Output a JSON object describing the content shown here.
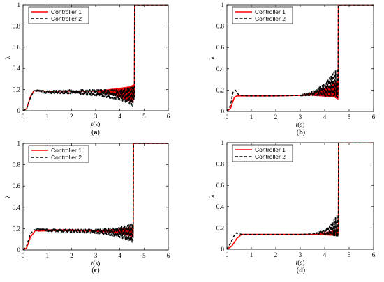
{
  "chart_data": [
    {
      "panel_label": "(a)",
      "type": "line",
      "xlabel_parts": [
        "t",
        "(s)"
      ],
      "ylabel": "λ",
      "xlim": [
        0,
        6
      ],
      "ylim": [
        0,
        1
      ],
      "xticks": [
        0,
        1,
        2,
        3,
        4,
        5,
        6
      ],
      "yticks": [
        0,
        0.2,
        0.4,
        0.6,
        0.8,
        1
      ],
      "legend_position": "top-left",
      "series": [
        {
          "name": "Controller 1",
          "color": "#ff0000",
          "style": "solid",
          "base": [
            [
              0,
              0
            ],
            [
              0.15,
              0.02
            ],
            [
              0.3,
              0.13
            ],
            [
              0.45,
              0.19
            ],
            [
              1,
              0.185
            ],
            [
              2,
              0.185
            ],
            [
              3,
              0.185
            ],
            [
              3.5,
              0.18
            ],
            [
              4,
              0.17
            ],
            [
              4.4,
              0.16
            ],
            [
              4.6,
              0.16
            ],
            [
              4.61,
              1
            ]
          ],
          "oscillation": [
            [
              3.0,
              0.0
            ],
            [
              3.5,
              0.02
            ],
            [
              4.0,
              0.045
            ],
            [
              4.4,
              0.07
            ],
            [
              4.58,
              0.09
            ]
          ],
          "osc_period": 0.05
        },
        {
          "name": "Controller 2",
          "color": "#000000",
          "style": "dashed",
          "base": [
            [
              0,
              0
            ],
            [
              0.15,
              0.02
            ],
            [
              0.3,
              0.12
            ],
            [
              0.45,
              0.19
            ],
            [
              1,
              0.175
            ],
            [
              2,
              0.18
            ],
            [
              3,
              0.17
            ],
            [
              3.5,
              0.16
            ],
            [
              4,
              0.15
            ],
            [
              4.4,
              0.14
            ],
            [
              4.6,
              0.13
            ],
            [
              4.61,
              1
            ]
          ],
          "oscillation": [
            [
              0.5,
              0.01
            ],
            [
              2.0,
              0.02
            ],
            [
              3.0,
              0.03
            ],
            [
              3.5,
              0.04
            ],
            [
              4.0,
              0.05
            ],
            [
              4.4,
              0.08
            ],
            [
              4.58,
              0.1
            ]
          ],
          "osc_period": 0.06
        }
      ]
    },
    {
      "panel_label": "(b)",
      "type": "line",
      "xlabel_parts": [
        "t",
        "(s)"
      ],
      "ylabel": "λ",
      "xlim": [
        0,
        6
      ],
      "ylim": [
        0,
        1
      ],
      "xticks": [
        0,
        1,
        2,
        3,
        4,
        5,
        6
      ],
      "yticks": [
        0,
        0.2,
        0.4,
        0.6,
        0.8,
        1
      ],
      "legend_position": "top-left",
      "series": [
        {
          "name": "Controller 1",
          "color": "#ff0000",
          "style": "solid",
          "base": [
            [
              0,
              0
            ],
            [
              0.15,
              0.03
            ],
            [
              0.3,
              0.13
            ],
            [
              0.4,
              0.145
            ],
            [
              1,
              0.145
            ],
            [
              2,
              0.145
            ],
            [
              3,
              0.15
            ],
            [
              3.5,
              0.16
            ],
            [
              4,
              0.18
            ],
            [
              4.4,
              0.2
            ],
            [
              4.55,
              0.2
            ],
            [
              4.56,
              1
            ]
          ],
          "oscillation": [
            [
              3.0,
              0.0
            ],
            [
              3.5,
              0.01
            ],
            [
              4.0,
              0.04
            ],
            [
              4.4,
              0.07
            ],
            [
              4.55,
              0.09
            ]
          ],
          "osc_period": 0.05
        },
        {
          "name": "Controller 2",
          "color": "#000000",
          "style": "dashed",
          "base": [
            [
              0,
              0
            ],
            [
              0.15,
              0.06
            ],
            [
              0.25,
              0.18
            ],
            [
              0.35,
              0.2
            ],
            [
              0.5,
              0.15
            ],
            [
              1,
              0.145
            ],
            [
              2,
              0.145
            ],
            [
              3,
              0.15
            ],
            [
              3.5,
              0.17
            ],
            [
              4,
              0.2
            ],
            [
              4.4,
              0.26
            ],
            [
              4.55,
              0.27
            ],
            [
              4.56,
              1
            ]
          ],
          "oscillation": [
            [
              3.0,
              0.005
            ],
            [
              3.5,
              0.02
            ],
            [
              4.0,
              0.06
            ],
            [
              4.4,
              0.12
            ],
            [
              4.55,
              0.15
            ]
          ],
          "osc_period": 0.06
        }
      ]
    },
    {
      "panel_label": "(c)",
      "type": "line",
      "xlabel_parts": [
        "t",
        "(s)"
      ],
      "ylabel": "λ",
      "xlim": [
        0,
        6
      ],
      "ylim": [
        0,
        1
      ],
      "xticks": [
        0,
        1,
        2,
        3,
        4,
        5,
        6
      ],
      "yticks": [
        0,
        0.2,
        0.4,
        0.6,
        0.8,
        1
      ],
      "legend_position": "top-left",
      "series": [
        {
          "name": "Controller 1",
          "color": "#ff0000",
          "style": "solid",
          "base": [
            [
              0,
              0
            ],
            [
              0.15,
              0.02
            ],
            [
              0.3,
              0.12
            ],
            [
              0.5,
              0.18
            ],
            [
              1,
              0.185
            ],
            [
              2,
              0.185
            ],
            [
              3,
              0.18
            ],
            [
              3.5,
              0.178
            ],
            [
              4,
              0.175
            ],
            [
              4.4,
              0.17
            ],
            [
              4.55,
              0.17
            ],
            [
              4.56,
              1
            ]
          ],
          "oscillation": [
            [
              0.6,
              0.005
            ],
            [
              3.0,
              0.005
            ],
            [
              3.5,
              0.01
            ],
            [
              4.0,
              0.02
            ],
            [
              4.4,
              0.04
            ],
            [
              4.55,
              0.05
            ]
          ],
          "osc_period": 0.05
        },
        {
          "name": "Controller 2",
          "color": "#000000",
          "style": "dashed",
          "base": [
            [
              0,
              0
            ],
            [
              0.15,
              0.04
            ],
            [
              0.3,
              0.15
            ],
            [
              0.45,
              0.19
            ],
            [
              1,
              0.185
            ],
            [
              2,
              0.18
            ],
            [
              3,
              0.175
            ],
            [
              3.5,
              0.17
            ],
            [
              4,
              0.165
            ],
            [
              4.4,
              0.16
            ],
            [
              4.55,
              0.16
            ],
            [
              4.56,
              1
            ]
          ],
          "oscillation": [
            [
              0.5,
              0.01
            ],
            [
              2.0,
              0.015
            ],
            [
              3.0,
              0.02
            ],
            [
              3.5,
              0.03
            ],
            [
              4.0,
              0.05
            ],
            [
              4.4,
              0.08
            ],
            [
              4.55,
              0.1
            ]
          ],
          "osc_period": 0.06
        }
      ]
    },
    {
      "panel_label": "(d)",
      "type": "line",
      "xlabel_parts": [
        "t",
        "(s)"
      ],
      "ylabel": "λ",
      "xlim": [
        0,
        6
      ],
      "ylim": [
        0,
        1
      ],
      "xticks": [
        0,
        1,
        2,
        3,
        4,
        5,
        6
      ],
      "yticks": [
        0,
        0.2,
        0.4,
        0.6,
        0.8,
        1
      ],
      "legend_position": "top-left",
      "series": [
        {
          "name": "Controller 1",
          "color": "#ff0000",
          "style": "solid",
          "base": [
            [
              0,
              0
            ],
            [
              0.2,
              0.03
            ],
            [
              0.4,
              0.1
            ],
            [
              0.6,
              0.14
            ],
            [
              1,
              0.14
            ],
            [
              2,
              0.14
            ],
            [
              3,
              0.14
            ],
            [
              3.5,
              0.14
            ],
            [
              4,
              0.145
            ],
            [
              4.3,
              0.15
            ],
            [
              4.5,
              0.16
            ],
            [
              4.56,
              0.16
            ],
            [
              4.57,
              1
            ]
          ],
          "oscillation": [
            [
              3.6,
              0.0
            ],
            [
              4.0,
              0.01
            ],
            [
              4.3,
              0.02
            ],
            [
              4.5,
              0.03
            ],
            [
              4.56,
              0.04
            ]
          ],
          "osc_period": 0.05
        },
        {
          "name": "Controller 2",
          "color": "#000000",
          "style": "dashed",
          "base": [
            [
              0,
              0
            ],
            [
              0.15,
              0.06
            ],
            [
              0.3,
              0.13
            ],
            [
              0.4,
              0.155
            ],
            [
              0.6,
              0.14
            ],
            [
              1,
              0.14
            ],
            [
              2,
              0.14
            ],
            [
              3,
              0.14
            ],
            [
              3.5,
              0.145
            ],
            [
              4,
              0.16
            ],
            [
              4.3,
              0.19
            ],
            [
              4.5,
              0.22
            ],
            [
              4.56,
              0.22
            ],
            [
              4.57,
              1
            ]
          ],
          "oscillation": [
            [
              3.5,
              0.0
            ],
            [
              4.0,
              0.02
            ],
            [
              4.3,
              0.06
            ],
            [
              4.5,
              0.1
            ],
            [
              4.56,
              0.12
            ]
          ],
          "osc_period": 0.06
        }
      ]
    }
  ]
}
